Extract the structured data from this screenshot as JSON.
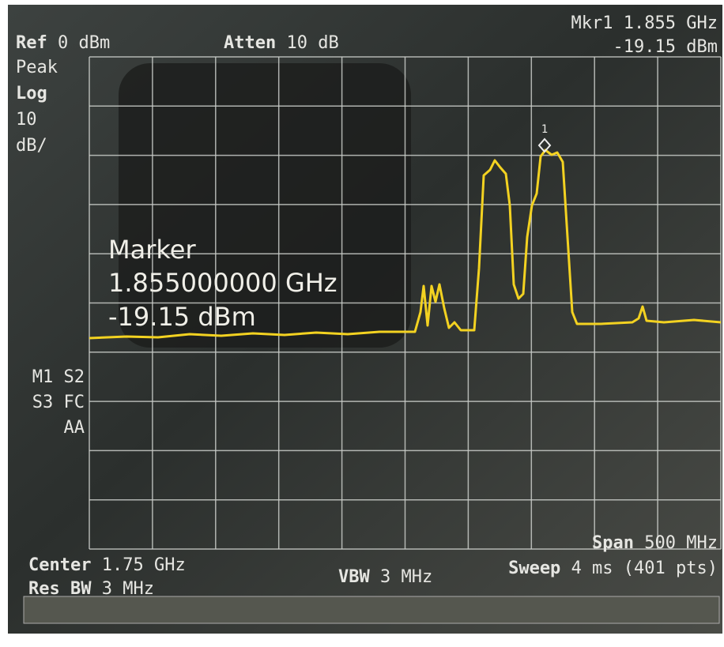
{
  "header": {
    "ref": {
      "label": "Ref",
      "value": "0 dBm"
    },
    "detector": "Peak",
    "scale": {
      "label": "Log",
      "value": "10",
      "unit": "dB/"
    },
    "atten": {
      "label": "Atten",
      "value": "10 dB"
    },
    "marker_readout": {
      "label": "Mkr1",
      "frequency": "1.855 GHz",
      "level": "-19.15 dBm"
    }
  },
  "marker_box": {
    "title": "Marker",
    "frequency": "1.855000000 GHz",
    "level": "-19.15 dBm"
  },
  "marker_number": "1",
  "status": [
    "M1 S2",
    "S3 FC",
    "AA"
  ],
  "footer": {
    "span": {
      "label": "Span",
      "value": "500 MHz"
    },
    "center": {
      "label": "Center",
      "value": "1.75 GHz"
    },
    "res_bw": {
      "label": "Res BW",
      "value": "3 MHz"
    },
    "vbw": {
      "label": "VBW",
      "value": "3 MHz"
    },
    "sweep": {
      "label": "Sweep",
      "value": "4 ms (401 pts)"
    }
  }
}
